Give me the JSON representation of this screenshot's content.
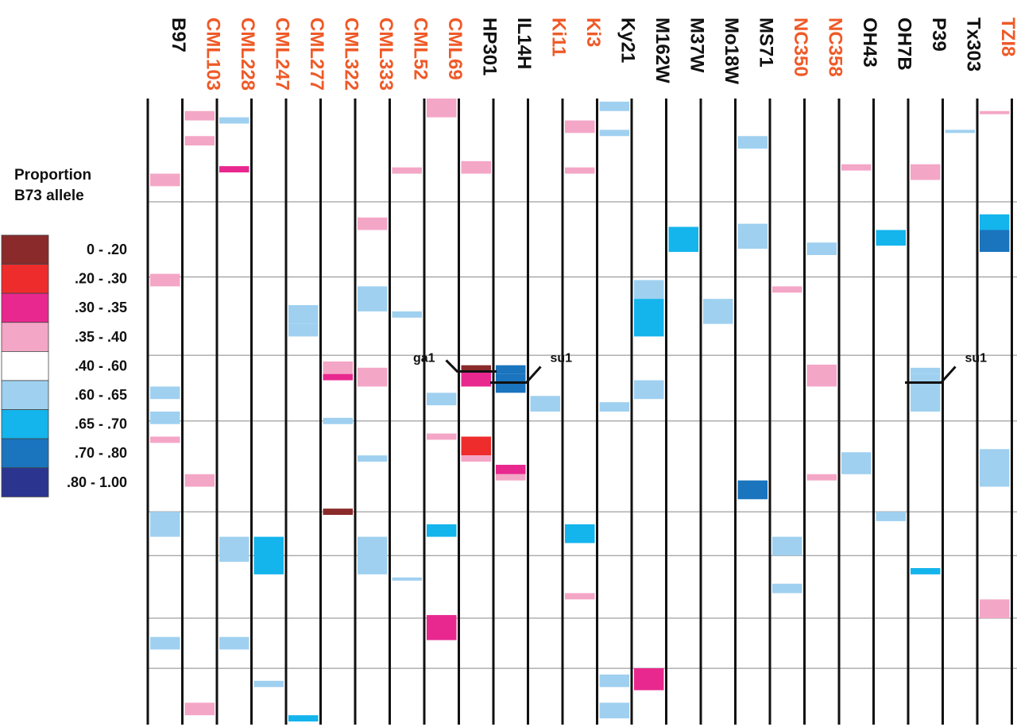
{
  "chart_data": {
    "type": "heatmap",
    "title": "",
    "legend": {
      "title_lines": [
        "Proportion",
        "B73 allele"
      ],
      "placement": "left",
      "bins": [
        {
          "label": "0 - .20",
          "color": "#8a2a2a"
        },
        {
          "label": ".20 - .30",
          "color": "#ee2c2c"
        },
        {
          "label": ".30 - .35",
          "color": "#e8288e"
        },
        {
          "label": ".35 - .40",
          "color": "#f4a6c6"
        },
        {
          "label": ".40 - .60",
          "color": "#ffffff"
        },
        {
          "label": ".60 - .65",
          "color": "#9fd0f0"
        },
        {
          "label": ".65 - .70",
          "color": "#14b4ec"
        },
        {
          "label": ".70 - .80",
          "color": "#1a74be"
        },
        {
          "label": ".80 - 1.00",
          "color": "#2b3590"
        }
      ]
    },
    "lines": [
      {
        "name": "B97",
        "color": "#111111",
        "segments": [
          [
            0.12,
            0.14,
            3
          ],
          [
            0.54,
            0.55,
            3
          ],
          [
            0.46,
            0.48,
            5
          ],
          [
            0.5,
            0.52,
            5
          ],
          [
            0.28,
            0.3,
            3
          ],
          [
            0.66,
            0.7,
            5
          ],
          [
            0.86,
            0.88,
            5
          ]
        ]
      },
      {
        "name": "CML103",
        "color": "#ef5a28",
        "segments": [
          [
            0.02,
            0.035,
            3
          ],
          [
            0.06,
            0.075,
            3
          ],
          [
            0.6,
            0.62,
            3
          ],
          [
            0.965,
            0.985,
            3
          ]
        ]
      },
      {
        "name": "CML228",
        "color": "#ef5a28",
        "segments": [
          [
            0.03,
            0.04,
            5
          ],
          [
            0.108,
            0.118,
            2
          ],
          [
            0.7,
            0.74,
            5
          ],
          [
            0.86,
            0.88,
            5
          ]
        ]
      },
      {
        "name": "CML247",
        "color": "#ef5a28",
        "segments": [
          [
            0.7,
            0.76,
            6
          ],
          [
            0.93,
            0.94,
            5
          ]
        ]
      },
      {
        "name": "CML277",
        "color": "#ef5a28",
        "segments": [
          [
            0.33,
            0.36,
            5
          ],
          [
            0.36,
            0.38,
            5
          ],
          [
            0.985,
            0.995,
            6
          ]
        ]
      },
      {
        "name": "CML322",
        "color": "#ef5a28",
        "segments": [
          [
            0.42,
            0.44,
            3
          ],
          [
            0.44,
            0.45,
            2
          ],
          [
            0.51,
            0.52,
            5
          ],
          [
            0.655,
            0.665,
            0
          ]
        ]
      },
      {
        "name": "CML333",
        "color": "#ef5a28",
        "segments": [
          [
            0.19,
            0.21,
            3
          ],
          [
            0.3,
            0.34,
            5
          ],
          [
            0.43,
            0.46,
            3
          ],
          [
            0.57,
            0.58,
            5
          ],
          [
            0.7,
            0.76,
            5
          ]
        ]
      },
      {
        "name": "CML52",
        "color": "#ef5a28",
        "segments": [
          [
            0.11,
            0.12,
            3
          ],
          [
            0.34,
            0.35,
            5
          ],
          [
            0.765,
            0.77,
            5
          ]
        ]
      },
      {
        "name": "CML69",
        "color": "#ef5a28",
        "segments": [
          [
            0.0,
            0.03,
            3
          ],
          [
            0.47,
            0.49,
            5
          ],
          [
            0.535,
            0.545,
            3
          ],
          [
            0.68,
            0.7,
            6
          ],
          [
            0.825,
            0.865,
            2
          ]
        ]
      },
      {
        "name": "HP301",
        "color": "#111111",
        "segments": [
          [
            0.1,
            0.12,
            3
          ],
          [
            0.426,
            0.436,
            0
          ],
          [
            0.436,
            0.46,
            2
          ],
          [
            0.54,
            0.57,
            1
          ],
          [
            0.57,
            0.58,
            3
          ]
        ]
      },
      {
        "name": "IL14H",
        "color": "#111111",
        "segments": [
          [
            0.426,
            0.44,
            7
          ],
          [
            0.44,
            0.47,
            7
          ],
          [
            0.585,
            0.6,
            2
          ],
          [
            0.6,
            0.61,
            3
          ]
        ]
      },
      {
        "name": "Ki11",
        "color": "#ef5a28",
        "segments": [
          [
            0.475,
            0.5,
            5
          ]
        ]
      },
      {
        "name": "Ki3",
        "color": "#ef5a28",
        "segments": [
          [
            0.035,
            0.055,
            3
          ],
          [
            0.11,
            0.12,
            3
          ],
          [
            0.68,
            0.71,
            6
          ],
          [
            0.79,
            0.8,
            3
          ]
        ]
      },
      {
        "name": "Ky21",
        "color": "#111111",
        "segments": [
          [
            0.005,
            0.02,
            5
          ],
          [
            0.05,
            0.06,
            5
          ],
          [
            0.485,
            0.5,
            5
          ],
          [
            0.92,
            0.94,
            5
          ],
          [
            0.965,
            0.99,
            5
          ]
        ]
      },
      {
        "name": "M162W",
        "color": "#111111",
        "segments": [
          [
            0.29,
            0.32,
            5
          ],
          [
            0.32,
            0.38,
            6
          ],
          [
            0.45,
            0.48,
            5
          ],
          [
            0.91,
            0.945,
            2
          ]
        ]
      },
      {
        "name": "M37W",
        "color": "#111111",
        "segments": [
          [
            0.205,
            0.245,
            6
          ]
        ]
      },
      {
        "name": "Mo18W",
        "color": "#111111",
        "segments": [
          [
            0.32,
            0.36,
            5
          ]
        ]
      },
      {
        "name": "MS71",
        "color": "#111111",
        "segments": [
          [
            0.06,
            0.08,
            5
          ],
          [
            0.2,
            0.24,
            5
          ],
          [
            0.61,
            0.64,
            7
          ]
        ]
      },
      {
        "name": "NC350",
        "color": "#ef5a28",
        "segments": [
          [
            0.3,
            0.31,
            3
          ],
          [
            0.7,
            0.73,
            5
          ],
          [
            0.775,
            0.79,
            5
          ]
        ]
      },
      {
        "name": "NC358",
        "color": "#ef5a28",
        "segments": [
          [
            0.23,
            0.25,
            5
          ],
          [
            0.425,
            0.46,
            3
          ],
          [
            0.6,
            0.61,
            3
          ]
        ]
      },
      {
        "name": "OH43",
        "color": "#111111",
        "segments": [
          [
            0.105,
            0.115,
            3
          ],
          [
            0.565,
            0.6,
            5
          ]
        ]
      },
      {
        "name": "OH7B",
        "color": "#111111",
        "segments": [
          [
            0.21,
            0.235,
            6
          ],
          [
            0.66,
            0.675,
            5
          ]
        ]
      },
      {
        "name": "P39",
        "color": "#111111",
        "segments": [
          [
            0.105,
            0.13,
            3
          ],
          [
            0.43,
            0.44,
            5
          ],
          [
            0.44,
            0.5,
            5
          ],
          [
            0.75,
            0.76,
            6
          ]
        ]
      },
      {
        "name": "Tx303",
        "color": "#111111",
        "segments": [
          [
            0.05,
            0.055,
            5
          ]
        ]
      },
      {
        "name": "TZI8",
        "color": "#ef5a28",
        "segments": [
          [
            0.02,
            0.025,
            3
          ],
          [
            0.185,
            0.21,
            6
          ],
          [
            0.21,
            0.245,
            7
          ],
          [
            0.56,
            0.62,
            5
          ],
          [
            0.8,
            0.83,
            3
          ]
        ]
      }
    ],
    "horizontal_gridlines": [
      0.165,
      0.285,
      0.41,
      0.515,
      0.66,
      0.73,
      0.83,
      0.91
    ],
    "annotations": [
      {
        "label": "ga1",
        "line": "HP301",
        "y": 0.446
      },
      {
        "label": "su1",
        "line": "IL14H",
        "y": 0.446
      },
      {
        "label": "su1",
        "line": "P39",
        "y": 0.446
      }
    ]
  }
}
